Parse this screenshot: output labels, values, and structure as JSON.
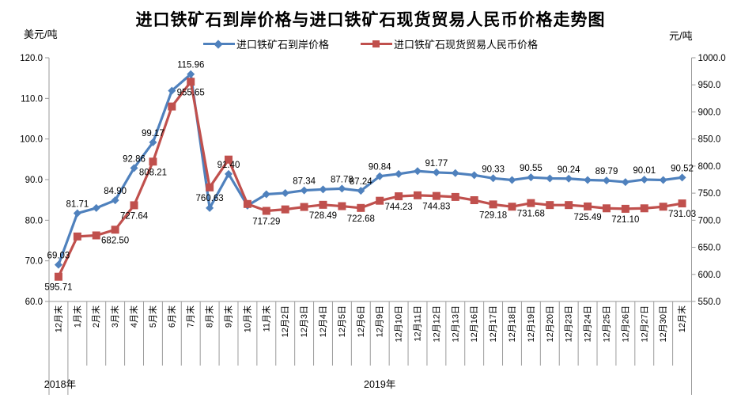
{
  "title": "进口铁矿石到岸价格与进口铁矿石现货贸易人民币价格走势图",
  "left_axis": {
    "unit": "美元/吨",
    "ticks": [
      "120.0",
      "110.0",
      "100.0",
      "90.0",
      "80.0",
      "70.0",
      "60.0"
    ],
    "min": 60,
    "max": 120
  },
  "right_axis": {
    "unit": "元/吨",
    "ticks": [
      "1000.0",
      "950.0",
      "900.0",
      "850.0",
      "800.0",
      "750.0",
      "700.0",
      "650.0",
      "600.0",
      "550.0"
    ],
    "min": 550,
    "max": 1000
  },
  "x_axis": {
    "year_left": "2018年",
    "year_right": "2019年"
  },
  "colors": {
    "blue": "#4F81BD",
    "red": "#C0504D",
    "axis": "#9a9a9a",
    "text": "#000000"
  },
  "chart_data": {
    "type": "line",
    "legend_position": "top",
    "grid": false,
    "categories": [
      "12月末",
      "1月末",
      "2月末",
      "3月末",
      "4月末",
      "5月末",
      "6月末",
      "7月末",
      "8月末",
      "9月末",
      "10月末",
      "11月末",
      "12月2日",
      "12月3日",
      "12月4日",
      "12月5日",
      "12月6日",
      "12月9日",
      "12月10日",
      "12月11日",
      "12月12日",
      "12月13日",
      "12月16日",
      "12月17日",
      "12月18日",
      "12月19日",
      "12月20日",
      "12月23日",
      "12月24日",
      "12月25日",
      "12月26日",
      "12月27日",
      "12月30日",
      "12月末"
    ],
    "axes": {
      "left": {
        "min": 60,
        "max": 120
      },
      "right": {
        "min": 550,
        "max": 1000
      }
    },
    "series": [
      {
        "name": "进口铁矿石到岸价格",
        "axis": "left",
        "color": "#4F81BD",
        "marker": "diamond",
        "values": [
          69.03,
          81.71,
          83.0,
          84.9,
          92.86,
          99.17,
          111.9,
          115.96,
          83.0,
          91.4,
          83.6,
          86.4,
          86.7,
          87.34,
          87.6,
          87.78,
          87.24,
          90.84,
          91.4,
          92.1,
          91.77,
          91.6,
          91.1,
          90.33,
          89.9,
          90.55,
          90.3,
          90.24,
          89.9,
          89.79,
          89.4,
          90.01,
          89.9,
          90.52
        ],
        "labels": {
          "0": "69.03",
          "1": "81.71",
          "3": "84.90",
          "4": "92.86",
          "5": "99.17",
          "7": "115.96",
          "9": "91.40",
          "13": "87.34",
          "15": "87.78",
          "16": "87.24",
          "17": "90.84",
          "20": "91.77",
          "23": "90.33",
          "25": "90.55",
          "27": "90.24",
          "29": "89.79",
          "31": "90.01",
          "33": "90.52"
        }
      },
      {
        "name": "进口铁矿石现货贸易人民币价格",
        "axis": "right",
        "color": "#C0504D",
        "marker": "square",
        "values": [
          595.71,
          670,
          672,
          682.5,
          727.64,
          808.21,
          910,
          955.65,
          760.63,
          812,
          730,
          717.29,
          720,
          724.5,
          728.49,
          726,
          722.68,
          736,
          744.23,
          746,
          744.83,
          743,
          737,
          729.18,
          725,
          731.68,
          728,
          728,
          725.49,
          722,
          721.1,
          722,
          725,
          731.03
        ],
        "labels": {
          "0": "595.71",
          "3": "682.50",
          "4": "727.64",
          "5": "808.21",
          "7": "955.65",
          "8": "760.63",
          "11": "717.29",
          "14": "728.49",
          "16": "722.68",
          "18": "744.23",
          "20": "744.83",
          "23": "729.18",
          "25": "731.68",
          "28": "725.49",
          "30": "721.10",
          "33": "731.03"
        }
      }
    ]
  }
}
